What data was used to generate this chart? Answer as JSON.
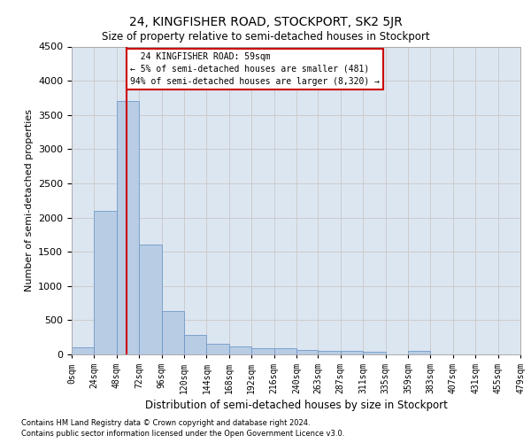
{
  "title": "24, KINGFISHER ROAD, STOCKPORT, SK2 5JR",
  "subtitle": "Size of property relative to semi-detached houses in Stockport",
  "xlabel": "Distribution of semi-detached houses by size in Stockport",
  "ylabel": "Number of semi-detached properties",
  "property_label": "24 KINGFISHER ROAD: 59sqm",
  "smaller_pct": 5,
  "smaller_n": 481,
  "larger_pct": 94,
  "larger_n": 8320,
  "bin_edges": [
    0,
    24,
    48,
    72,
    96,
    120,
    144,
    168,
    192,
    216,
    240,
    263,
    287,
    311,
    335,
    359,
    383,
    407,
    431,
    455,
    479
  ],
  "bar_heights": [
    100,
    2100,
    3700,
    1600,
    630,
    290,
    150,
    120,
    95,
    95,
    60,
    50,
    50,
    40,
    5,
    55,
    5,
    5,
    5,
    5
  ],
  "bar_color": "#b8cce4",
  "bar_edge_color": "#7199c8",
  "vline_color": "#cc0000",
  "vline_x": 59,
  "annotation_box_color": "#cc0000",
  "ylim": [
    0,
    4500
  ],
  "yticks": [
    0,
    500,
    1000,
    1500,
    2000,
    2500,
    3000,
    3500,
    4000,
    4500
  ],
  "grid_color": "#cccccc",
  "background_color": "#dce6f1",
  "footer_line1": "Contains HM Land Registry data © Crown copyright and database right 2024.",
  "footer_line2": "Contains public sector information licensed under the Open Government Licence v3.0.",
  "tick_labels": [
    "0sqm",
    "24sqm",
    "48sqm",
    "72sqm",
    "96sqm",
    "120sqm",
    "144sqm",
    "168sqm",
    "192sqm",
    "216sqm",
    "240sqm",
    "263sqm",
    "287sqm",
    "311sqm",
    "335sqm",
    "359sqm",
    "383sqm",
    "407sqm",
    "431sqm",
    "455sqm",
    "479sqm"
  ]
}
